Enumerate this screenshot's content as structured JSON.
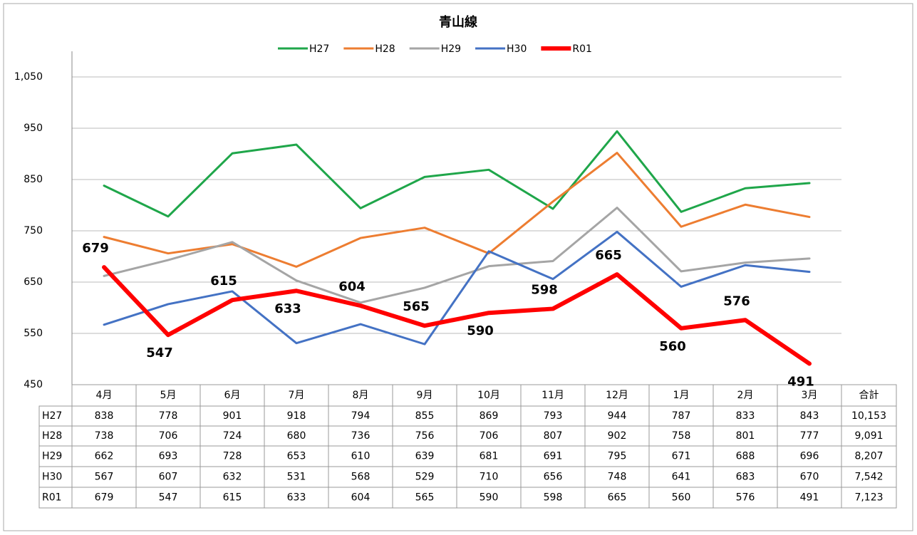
{
  "chart_data": {
    "type": "line",
    "title": "青山線",
    "categories": [
      "4月",
      "5月",
      "6月",
      "7月",
      "8月",
      "9月",
      "10月",
      "11月",
      "12月",
      "1月",
      "2月",
      "3月"
    ],
    "total_header": "合計",
    "series": [
      {
        "name": "H27",
        "color": "#1fa64a",
        "values": [
          838,
          778,
          901,
          918,
          794,
          855,
          869,
          793,
          944,
          787,
          833,
          843
        ],
        "total": {
          "value": 10153,
          "label": "10,153"
        }
      },
      {
        "name": "H28",
        "color": "#ed7d31",
        "values": [
          738,
          706,
          724,
          680,
          736,
          756,
          706,
          807,
          902,
          758,
          801,
          777
        ],
        "total": {
          "value": 9091,
          "label": "9,091"
        }
      },
      {
        "name": "H29",
        "color": "#a5a5a5",
        "values": [
          662,
          693,
          728,
          653,
          610,
          639,
          681,
          691,
          795,
          671,
          688,
          696
        ],
        "total": {
          "value": 8207,
          "label": "8,207"
        }
      },
      {
        "name": "H30",
        "color": "#4472c4",
        "values": [
          567,
          607,
          632,
          531,
          568,
          529,
          710,
          656,
          748,
          641,
          683,
          670
        ],
        "total": {
          "value": 7542,
          "label": "7,542"
        }
      },
      {
        "name": "R01",
        "color": "#ff0000",
        "values": [
          679,
          547,
          615,
          633,
          604,
          565,
          590,
          598,
          665,
          560,
          576,
          491
        ],
        "total": {
          "value": 7123,
          "label": "7,123"
        },
        "data_labels": true
      }
    ],
    "ylim": [
      450,
      1100
    ],
    "yticks": [
      450,
      550,
      650,
      750,
      850,
      950,
      {
        "value": 1050,
        "label": "1,050"
      }
    ],
    "grid": true,
    "legend": "top"
  }
}
